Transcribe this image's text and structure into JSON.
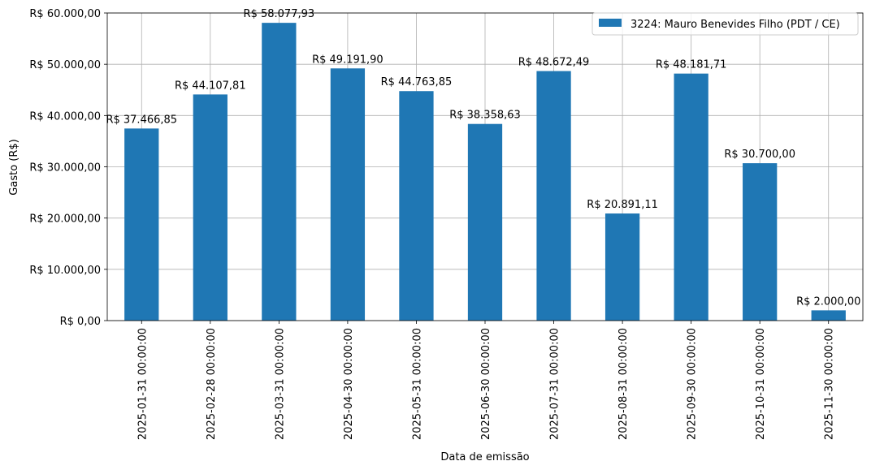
{
  "chart_data": {
    "type": "bar",
    "title": "",
    "xlabel": "Data de emissão",
    "ylabel": "Gasto (R$)",
    "categories": [
      "2025-01-31 00:00:00",
      "2025-02-28 00:00:00",
      "2025-03-31 00:00:00",
      "2025-04-30 00:00:00",
      "2025-05-31 00:00:00",
      "2025-06-30 00:00:00",
      "2025-07-31 00:00:00",
      "2025-08-31 00:00:00",
      "2025-09-30 00:00:00",
      "2025-10-31 00:00:00",
      "2025-11-30 00:00:00"
    ],
    "series": [
      {
        "name": "3224: Mauro Benevides Filho (PDT / CE)",
        "color": "#1f77b4",
        "values": [
          37466.85,
          44107.81,
          58077.93,
          49191.9,
          44763.85,
          38358.63,
          48672.49,
          20891.11,
          48181.71,
          30700.0,
          2000.0
        ]
      }
    ],
    "data_labels": [
      "R$ 37.466,85",
      "R$ 44.107,81",
      "R$ 58.077,93",
      "R$ 49.191,90",
      "R$ 44.763,85",
      "R$ 38.358,63",
      "R$ 48.672,49",
      "R$ 20.891,11",
      "R$ 48.181,71",
      "R$ 30.700,00",
      "R$ 2.000,00"
    ],
    "ylim": [
      0,
      60000
    ],
    "yticks": [
      0,
      10000,
      20000,
      30000,
      40000,
      50000,
      60000
    ],
    "ytick_labels": [
      "R$ 0,00",
      "R$ 10.000,00",
      "R$ 20.000,00",
      "R$ 30.000,00",
      "R$ 40.000,00",
      "R$ 50.000,00",
      "R$ 60.000,00"
    ],
    "grid": true,
    "legend_position": "top-right"
  }
}
